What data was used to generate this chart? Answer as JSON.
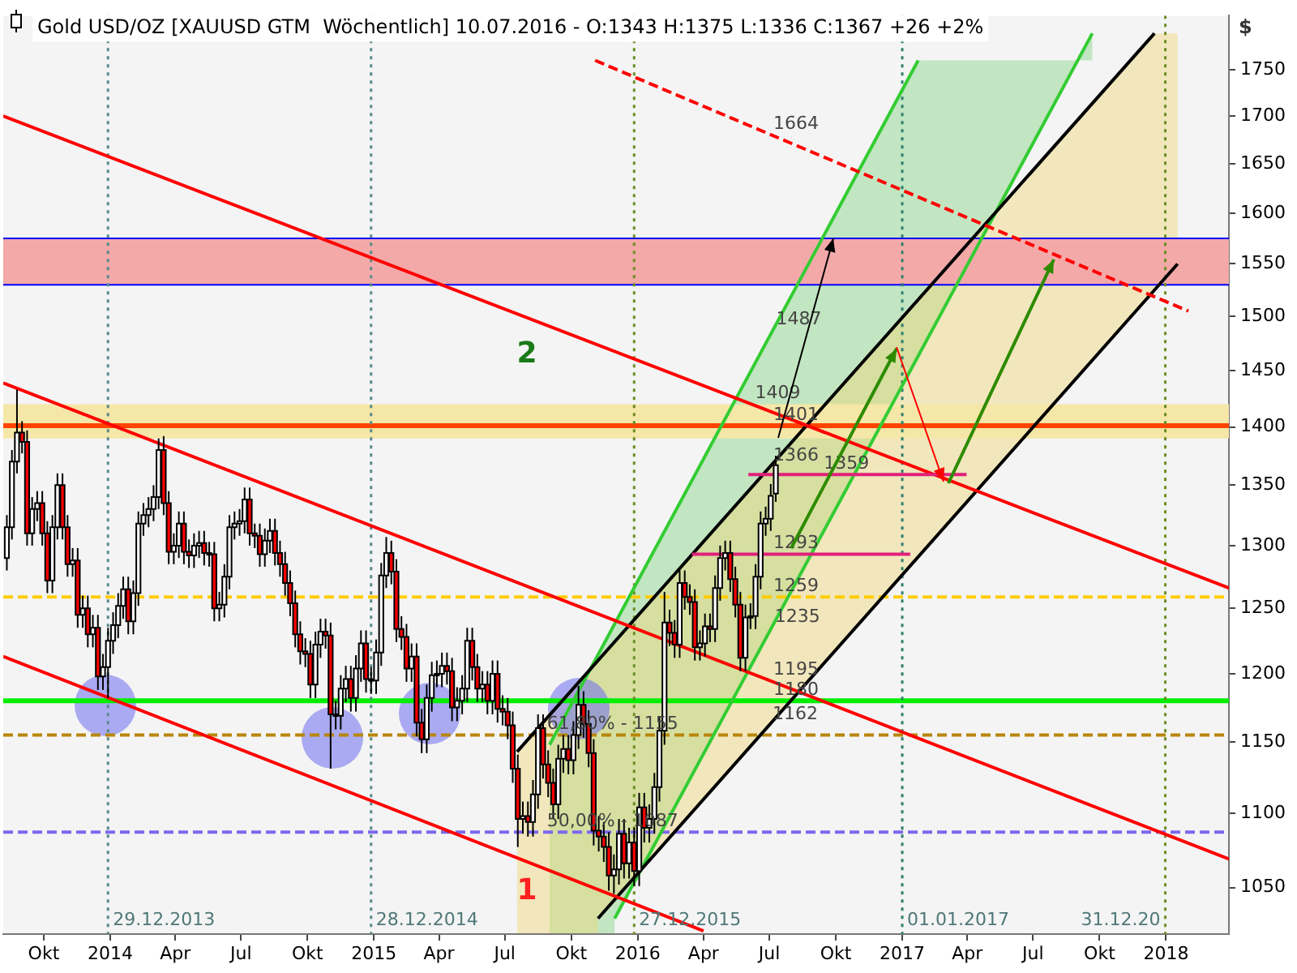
{
  "chart_data": {
    "type": "candlestick",
    "title": "Gold USD/OZ [XAUUSD GTM  Wöchentlich] 10.07.2016 - O:1343 H:1375 L:1336 C:1367 +26 +2%",
    "ylabel": "$",
    "log": true,
    "ylim": [
      1020,
      1810
    ],
    "yticks": [
      1050,
      1100,
      1150,
      1200,
      1250,
      1300,
      1350,
      1400,
      1450,
      1500,
      1550,
      1600,
      1650,
      1700,
      1750
    ],
    "xlim": [
      "2013-08-06",
      "2018-03-29"
    ],
    "xticks": [
      {
        "value": "2013-10-01",
        "label": "Okt"
      },
      {
        "value": "2014-01-01",
        "label": "2014"
      },
      {
        "value": "2014-04-01",
        "label": "Apr"
      },
      {
        "value": "2014-07-01",
        "label": "Jul"
      },
      {
        "value": "2014-10-01",
        "label": "Okt"
      },
      {
        "value": "2015-01-01",
        "label": "2015"
      },
      {
        "value": "2015-04-01",
        "label": "Apr"
      },
      {
        "value": "2015-07-01",
        "label": "Jul"
      },
      {
        "value": "2015-10-01",
        "label": "Okt"
      },
      {
        "value": "2016-01-01",
        "label": "2016"
      },
      {
        "value": "2016-04-01",
        "label": "Apr"
      },
      {
        "value": "2016-07-01",
        "label": "Jul"
      },
      {
        "value": "2016-10-01",
        "label": "Okt"
      },
      {
        "value": "2017-01-01",
        "label": "2017"
      },
      {
        "value": "2017-04-01",
        "label": "Apr"
      },
      {
        "value": "2017-07-01",
        "label": "Jul"
      },
      {
        "value": "2017-10-01",
        "label": "Okt"
      },
      {
        "value": "2018-01-01",
        "label": "2018"
      }
    ],
    "x": [
      "2013-08-11",
      "2013-08-18",
      "2013-08-25",
      "2013-09-01",
      "2013-09-08",
      "2013-09-15",
      "2013-09-22",
      "2013-09-29",
      "2013-10-06",
      "2013-10-13",
      "2013-10-20",
      "2013-10-27",
      "2013-11-03",
      "2013-11-10",
      "2013-11-17",
      "2013-11-24",
      "2013-12-01",
      "2013-12-08",
      "2013-12-15",
      "2013-12-22",
      "2013-12-29",
      "2014-01-05",
      "2014-01-12",
      "2014-01-19",
      "2014-01-26",
      "2014-02-02",
      "2014-02-09",
      "2014-02-16",
      "2014-02-23",
      "2014-03-02",
      "2014-03-09",
      "2014-03-16",
      "2014-03-23",
      "2014-03-30",
      "2014-04-06",
      "2014-04-13",
      "2014-04-20",
      "2014-04-27",
      "2014-05-04",
      "2014-05-11",
      "2014-05-18",
      "2014-05-25",
      "2014-06-01",
      "2014-06-08",
      "2014-06-15",
      "2014-06-22",
      "2014-06-29",
      "2014-07-06",
      "2014-07-13",
      "2014-07-20",
      "2014-07-27",
      "2014-08-03",
      "2014-08-10",
      "2014-08-17",
      "2014-08-24",
      "2014-08-31",
      "2014-09-07",
      "2014-09-14",
      "2014-09-21",
      "2014-09-28",
      "2014-10-05",
      "2014-10-12",
      "2014-10-19",
      "2014-10-26",
      "2014-11-02",
      "2014-11-09",
      "2014-11-16",
      "2014-11-23",
      "2014-11-30",
      "2014-12-07",
      "2014-12-14",
      "2014-12-21",
      "2014-12-28",
      "2015-01-04",
      "2015-01-11",
      "2015-01-18",
      "2015-01-25",
      "2015-02-01",
      "2015-02-08",
      "2015-02-15",
      "2015-02-22",
      "2015-03-01",
      "2015-03-08",
      "2015-03-15",
      "2015-03-22",
      "2015-03-29",
      "2015-04-05",
      "2015-04-12",
      "2015-04-19",
      "2015-04-26",
      "2015-05-03",
      "2015-05-10",
      "2015-05-17",
      "2015-05-24",
      "2015-05-31",
      "2015-06-07",
      "2015-06-14",
      "2015-06-21",
      "2015-06-28",
      "2015-07-05",
      "2015-07-12",
      "2015-07-19",
      "2015-07-26",
      "2015-08-02",
      "2015-08-09",
      "2015-08-16",
      "2015-08-23",
      "2015-08-30",
      "2015-09-06",
      "2015-09-13",
      "2015-09-20",
      "2015-09-27",
      "2015-10-04",
      "2015-10-11",
      "2015-10-18",
      "2015-10-25",
      "2015-11-01",
      "2015-11-08",
      "2015-11-15",
      "2015-11-22",
      "2015-11-29",
      "2015-12-06",
      "2015-12-13",
      "2015-12-20",
      "2015-12-27",
      "2016-01-03",
      "2016-01-10",
      "2016-01-17",
      "2016-01-24",
      "2016-01-31",
      "2016-02-07",
      "2016-02-14",
      "2016-02-21",
      "2016-02-28",
      "2016-03-06",
      "2016-03-13",
      "2016-03-20",
      "2016-03-27",
      "2016-04-03",
      "2016-04-10",
      "2016-04-17",
      "2016-04-24",
      "2016-05-01",
      "2016-05-08",
      "2016-05-15",
      "2016-05-22",
      "2016-05-29",
      "2016-06-05",
      "2016-06-12",
      "2016-06-19",
      "2016-06-26",
      "2016-07-03",
      "2016-07-10"
    ],
    "ohlc": [
      [
        1290,
        1325,
        1280,
        1315
      ],
      [
        1315,
        1380,
        1305,
        1370
      ],
      [
        1370,
        1433,
        1360,
        1395
      ],
      [
        1395,
        1405,
        1377,
        1387
      ],
      [
        1387,
        1397,
        1300,
        1310
      ],
      [
        1310,
        1340,
        1300,
        1330
      ],
      [
        1330,
        1345,
        1320,
        1335
      ],
      [
        1335,
        1345,
        1300,
        1310
      ],
      [
        1310,
        1320,
        1262,
        1272
      ],
      [
        1272,
        1325,
        1262,
        1315
      ],
      [
        1315,
        1360,
        1305,
        1350
      ],
      [
        1350,
        1360,
        1305,
        1315
      ],
      [
        1315,
        1325,
        1275,
        1285
      ],
      [
        1285,
        1298,
        1275,
        1288
      ],
      [
        1288,
        1298,
        1235,
        1245
      ],
      [
        1245,
        1260,
        1235,
        1250
      ],
      [
        1250,
        1260,
        1220,
        1230
      ],
      [
        1230,
        1245,
        1220,
        1235
      ],
      [
        1235,
        1245,
        1188,
        1198
      ],
      [
        1198,
        1215,
        1188,
        1205
      ],
      [
        1205,
        1235,
        1182,
        1225
      ],
      [
        1225,
        1247,
        1215,
        1237
      ],
      [
        1237,
        1262,
        1227,
        1252
      ],
      [
        1252,
        1275,
        1242,
        1265
      ],
      [
        1265,
        1275,
        1230,
        1240
      ],
      [
        1240,
        1272,
        1230,
        1262
      ],
      [
        1262,
        1328,
        1252,
        1318
      ],
      [
        1318,
        1335,
        1308,
        1325
      ],
      [
        1325,
        1340,
        1315,
        1330
      ],
      [
        1330,
        1350,
        1320,
        1340
      ],
      [
        1340,
        1390,
        1330,
        1380
      ],
      [
        1380,
        1392,
        1325,
        1335
      ],
      [
        1335,
        1345,
        1285,
        1295
      ],
      [
        1295,
        1310,
        1285,
        1300
      ],
      [
        1300,
        1328,
        1290,
        1318
      ],
      [
        1318,
        1328,
        1285,
        1295
      ],
      [
        1295,
        1305,
        1282,
        1292
      ],
      [
        1292,
        1310,
        1282,
        1300
      ],
      [
        1300,
        1312,
        1290,
        1302
      ],
      [
        1302,
        1312,
        1284,
        1294
      ],
      [
        1294,
        1303,
        1283,
        1293
      ],
      [
        1293,
        1303,
        1240,
        1250
      ],
      [
        1250,
        1263,
        1240,
        1253
      ],
      [
        1253,
        1285,
        1243,
        1275
      ],
      [
        1275,
        1325,
        1265,
        1315
      ],
      [
        1315,
        1328,
        1305,
        1318
      ],
      [
        1318,
        1330,
        1308,
        1320
      ],
      [
        1320,
        1348,
        1310,
        1338
      ],
      [
        1338,
        1348,
        1300,
        1310
      ],
      [
        1310,
        1318,
        1298,
        1308
      ],
      [
        1308,
        1318,
        1283,
        1293
      ],
      [
        1293,
        1314,
        1283,
        1304
      ],
      [
        1304,
        1322,
        1294,
        1312
      ],
      [
        1312,
        1322,
        1284,
        1294
      ],
      [
        1294,
        1304,
        1275,
        1285
      ],
      [
        1285,
        1295,
        1260,
        1270
      ],
      [
        1270,
        1280,
        1244,
        1254
      ],
      [
        1254,
        1264,
        1220,
        1230
      ],
      [
        1230,
        1240,
        1207,
        1217
      ],
      [
        1217,
        1227,
        1205,
        1215
      ],
      [
        1215,
        1225,
        1182,
        1192
      ],
      [
        1192,
        1232,
        1182,
        1222
      ],
      [
        1222,
        1242,
        1212,
        1232
      ],
      [
        1232,
        1242,
        1219,
        1229
      ],
      [
        1229,
        1239,
        1131,
        1170
      ],
      [
        1170,
        1180,
        1159,
        1169
      ],
      [
        1169,
        1199,
        1159,
        1189
      ],
      [
        1189,
        1206,
        1179,
        1196
      ],
      [
        1196,
        1206,
        1172,
        1182
      ],
      [
        1182,
        1214,
        1172,
        1204
      ],
      [
        1204,
        1233,
        1194,
        1223
      ],
      [
        1223,
        1233,
        1186,
        1196
      ],
      [
        1196,
        1205,
        1185,
        1195
      ],
      [
        1195,
        1226,
        1185,
        1216
      ],
      [
        1216,
        1286,
        1206,
        1276
      ],
      [
        1276,
        1307,
        1266,
        1294
      ],
      [
        1294,
        1304,
        1269,
        1279
      ],
      [
        1279,
        1289,
        1224,
        1234
      ],
      [
        1234,
        1244,
        1218,
        1228
      ],
      [
        1228,
        1238,
        1194,
        1204
      ],
      [
        1204,
        1223,
        1194,
        1213
      ],
      [
        1213,
        1223,
        1154,
        1164
      ],
      [
        1164,
        1174,
        1142,
        1152
      ],
      [
        1152,
        1192,
        1142,
        1182
      ],
      [
        1182,
        1209,
        1172,
        1199
      ],
      [
        1199,
        1210,
        1190,
        1200
      ],
      [
        1200,
        1216,
        1190,
        1206
      ],
      [
        1206,
        1216,
        1192,
        1202
      ],
      [
        1202,
        1212,
        1165,
        1175
      ],
      [
        1175,
        1190,
        1165,
        1180
      ],
      [
        1180,
        1199,
        1170,
        1189
      ],
      [
        1189,
        1235,
        1179,
        1225
      ],
      [
        1225,
        1235,
        1195,
        1205
      ],
      [
        1205,
        1215,
        1179,
        1189
      ],
      [
        1189,
        1202,
        1179,
        1192
      ],
      [
        1192,
        1202,
        1170,
        1180
      ],
      [
        1180,
        1210,
        1170,
        1200
      ],
      [
        1200,
        1210,
        1164,
        1174
      ],
      [
        1174,
        1184,
        1162,
        1172
      ],
      [
        1172,
        1182,
        1152,
        1162
      ],
      [
        1162,
        1172,
        1121,
        1131
      ],
      [
        1131,
        1141,
        1077,
        1096
      ],
      [
        1096,
        1108,
        1086,
        1098
      ],
      [
        1098,
        1108,
        1084,
        1094
      ],
      [
        1094,
        1123,
        1084,
        1113
      ],
      [
        1113,
        1170,
        1103,
        1160
      ],
      [
        1160,
        1170,
        1124,
        1134
      ],
      [
        1134,
        1144,
        1111,
        1121
      ],
      [
        1121,
        1131,
        1096,
        1106
      ],
      [
        1106,
        1148,
        1096,
        1138
      ],
      [
        1138,
        1155,
        1128,
        1145
      ],
      [
        1145,
        1155,
        1127,
        1137
      ],
      [
        1137,
        1165,
        1127,
        1155
      ],
      [
        1155,
        1191,
        1145,
        1177
      ],
      [
        1177,
        1187,
        1153,
        1163
      ],
      [
        1163,
        1173,
        1132,
        1142
      ],
      [
        1142,
        1152,
        1078,
        1088
      ],
      [
        1088,
        1098,
        1074,
        1084
      ],
      [
        1084,
        1094,
        1067,
        1077
      ],
      [
        1077,
        1087,
        1048,
        1058
      ],
      [
        1058,
        1072,
        1046,
        1062
      ],
      [
        1062,
        1096,
        1052,
        1086
      ],
      [
        1086,
        1096,
        1056,
        1066
      ],
      [
        1066,
        1090,
        1056,
        1080
      ],
      [
        1080,
        1090,
        1051,
        1061
      ],
      [
        1061,
        1114,
        1051,
        1104
      ],
      [
        1104,
        1114,
        1080,
        1090
      ],
      [
        1090,
        1106,
        1080,
        1096
      ],
      [
        1096,
        1128,
        1086,
        1118
      ],
      [
        1118,
        1168,
        1108,
        1158
      ],
      [
        1158,
        1263,
        1148,
        1239
      ],
      [
        1239,
        1249,
        1221,
        1231
      ],
      [
        1231,
        1241,
        1212,
        1222
      ],
      [
        1222,
        1280,
        1212,
        1270
      ],
      [
        1270,
        1280,
        1249,
        1259
      ],
      [
        1259,
        1269,
        1245,
        1255
      ],
      [
        1255,
        1265,
        1210,
        1220
      ],
      [
        1220,
        1233,
        1210,
        1223
      ],
      [
        1223,
        1246,
        1213,
        1236
      ],
      [
        1236,
        1246,
        1224,
        1234
      ],
      [
        1234,
        1276,
        1224,
        1266
      ],
      [
        1266,
        1300,
        1256,
        1290
      ],
      [
        1290,
        1304,
        1280,
        1294
      ],
      [
        1294,
        1304,
        1263,
        1273
      ],
      [
        1273,
        1283,
        1243,
        1253
      ],
      [
        1253,
        1263,
        1202,
        1212
      ],
      [
        1212,
        1253,
        1202,
        1243
      ],
      [
        1243,
        1254,
        1234,
        1244
      ],
      [
        1244,
        1285,
        1234,
        1275
      ],
      [
        1275,
        1328,
        1265,
        1318
      ],
      [
        1318,
        1332,
        1308,
        1322
      ],
      [
        1322,
        1351,
        1312,
        1341
      ],
      [
        1343,
        1375,
        1336,
        1367
      ]
    ],
    "series": [
      {
        "type": "line",
        "color": "#33cc33",
        "x": [
          "2015-09-01",
          "2017-01-23"
        ],
        "values": [
          1148,
          1760
        ]
      },
      {
        "type": "line",
        "color": "#33cc33",
        "x": [
          "2015-11-30",
          "2017-09-21"
        ],
        "values": [
          1030,
          1790
        ]
      },
      {
        "type": "line",
        "color": "#000000",
        "x": [
          "2015-07-18",
          "2017-12-16"
        ],
        "values": [
          1143,
          1790
        ]
      },
      {
        "type": "line",
        "color": "#000000",
        "x": [
          "2015-11-07",
          "2018-01-17"
        ],
        "values": [
          1030,
          1550
        ]
      },
      {
        "type": "line",
        "color": "#ff0000",
        "x": [
          "2013-08-06",
          "2018-03-29"
        ],
        "values": [
          1700,
          1266
        ]
      },
      {
        "type": "line",
        "color": "#ff0000",
        "line_style": "dashed",
        "x": [
          "2015-11-03",
          "2018-02-01"
        ],
        "values": [
          1760,
          1505
        ]
      },
      {
        "type": "line",
        "color": "#ff0000",
        "x": [
          "2013-08-06",
          "2018-03-29"
        ],
        "values": [
          1439,
          1069
        ]
      },
      {
        "type": "line",
        "color": "#ff0000",
        "x": [
          "2013-08-06",
          "2016-04-01"
        ],
        "values": [
          1213,
          1022
        ]
      },
      {
        "type": "line",
        "color": "#e0207a",
        "x": [
          "2016-06-02",
          "2017-03-31"
        ],
        "values": [
          1359,
          1359
        ]
      },
      {
        "type": "line",
        "color": "#e0207a",
        "x": [
          "2016-03-16",
          "2017-01-12"
        ],
        "values": [
          1293,
          1293
        ]
      }
    ],
    "bands": [
      {
        "axis": "y",
        "from": 1530,
        "to": 1575,
        "color": "#f4a9a9"
      },
      {
        "axis": "y",
        "from": 1390,
        "to": 1420,
        "color": "#f5e7a8"
      }
    ],
    "ref_lines": [
      {
        "axis": "y",
        "value": 1575,
        "color": "#0000ff"
      },
      {
        "axis": "y",
        "value": 1530,
        "color": "#0000ff"
      },
      {
        "axis": "y",
        "value": 1401,
        "color": "#ff4400"
      },
      {
        "axis": "y",
        "value": 1259,
        "color": "#ffcc00",
        "line_style": "dashed"
      },
      {
        "axis": "y",
        "value": 1180,
        "color": "#00ee00"
      },
      {
        "axis": "y",
        "value": 1155,
        "color": "#b8860b",
        "line_style": "dashed"
      },
      {
        "axis": "y",
        "value": 1087,
        "color": "#7b68ee",
        "line_style": "dashed"
      },
      {
        "axis": "x",
        "value": "2013-12-29",
        "label": "29.12.2013",
        "color": "#5a8a8a",
        "line_style": "dotted"
      },
      {
        "axis": "x",
        "value": "2014-12-28",
        "label": "28.12.2014",
        "color": "#5a8a8a",
        "line_style": "dotted"
      },
      {
        "axis": "x",
        "value": "2015-12-27",
        "label": "27.12.2015",
        "color": "#6b8e23",
        "line_style": "dotted"
      },
      {
        "axis": "x",
        "value": "2017-01-01",
        "label": "01.01.2017",
        "color": "#2f7f6f",
        "line_style": "dotted"
      },
      {
        "axis": "x",
        "value": "2017-12-31",
        "label": "31.12.20",
        "color": "#6b8e23",
        "line_style": "dotted"
      }
    ],
    "annotations": [
      {
        "text": "1664",
        "x": "2016-07-02",
        "y": 1680
      },
      {
        "text": "1487",
        "x": "2016-07-06",
        "y": 1487
      },
      {
        "text": "1409",
        "x": "2016-06-07",
        "y": 1420
      },
      {
        "text": "1401",
        "x": "2016-07-02",
        "y": 1401
      },
      {
        "text": "1366",
        "x": "2016-07-02",
        "y": 1366
      },
      {
        "text": "1359",
        "x": "2016-09-10",
        "y": 1359
      },
      {
        "text": "1293",
        "x": "2016-07-02",
        "y": 1293
      },
      {
        "text": "1259",
        "x": "2016-07-02",
        "y": 1259
      },
      {
        "text": "1235",
        "x": "2016-07-04",
        "y": 1235
      },
      {
        "text": "1195",
        "x": "2016-07-02",
        "y": 1195
      },
      {
        "text": "1180",
        "x": "2016-07-02",
        "y": 1180
      },
      {
        "text": "1162",
        "x": "2016-07-01",
        "y": 1162
      },
      {
        "text": "61,80% - 1155",
        "x": "2015-08-24",
        "y": 1155
      },
      {
        "text": "50,00% - 1087",
        "x": "2015-08-24",
        "y": 1087
      },
      "1",
      "2"
    ]
  }
}
